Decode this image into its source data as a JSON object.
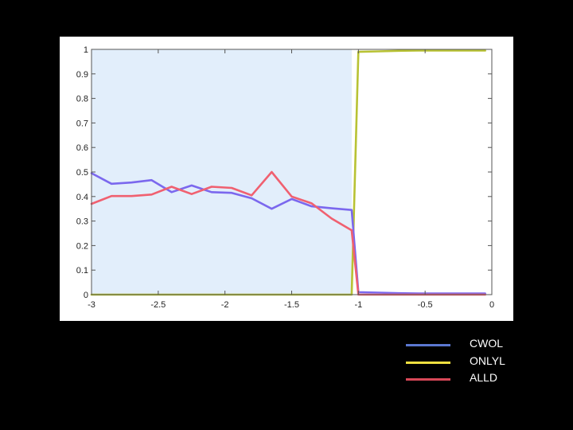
{
  "chart_data": {
    "type": "line",
    "title": "",
    "xlabel": "",
    "ylabel": "",
    "xlim": [
      -3,
      0
    ],
    "ylim": [
      0,
      1
    ],
    "x_ticks": [
      "-3",
      "-2.5",
      "-2",
      "-1.5",
      "-1",
      "-0.5",
      "0"
    ],
    "y_ticks": [
      "0",
      "0.1",
      "0.2",
      "0.3",
      "0.4",
      "0.5",
      "0.6",
      "0.7",
      "0.8",
      "0.9",
      "1"
    ],
    "shaded_region": {
      "x": [
        -3,
        -1.05
      ],
      "y": [
        0,
        1
      ],
      "color": "#e2eefb"
    },
    "grid": false,
    "legend_position": "bottom-right, outside plot",
    "x": [
      -3.0,
      -2.85,
      -2.7,
      -2.55,
      -2.4,
      -2.25,
      -2.1,
      -1.95,
      -1.8,
      -1.65,
      -1.5,
      -1.35,
      -1.2,
      -1.05,
      -1.0,
      -0.85,
      -0.7,
      -0.55,
      -0.4,
      -0.25,
      -0.1,
      -0.05
    ],
    "series": [
      {
        "name": "CWOL",
        "color": "#7b68ee",
        "values": [
          0.495,
          0.452,
          0.457,
          0.467,
          0.418,
          0.445,
          0.418,
          0.415,
          0.393,
          0.35,
          0.39,
          0.36,
          0.352,
          0.345,
          0.01,
          0.008,
          0.006,
          0.005,
          0.005,
          0.005,
          0.005,
          0.005
        ]
      },
      {
        "name": "ONLYL",
        "color": "#b8c234",
        "values": [
          0.0,
          0.0,
          0.0,
          0.0,
          0.0,
          0.0,
          0.0,
          0.0,
          0.0,
          0.0,
          0.0,
          0.0,
          0.0,
          0.0,
          0.99,
          0.992,
          0.994,
          0.995,
          0.995,
          0.995,
          0.995,
          0.995
        ]
      },
      {
        "name": "ALLD",
        "color": "#f06070",
        "values": [
          0.37,
          0.402,
          0.402,
          0.408,
          0.44,
          0.41,
          0.44,
          0.435,
          0.405,
          0.5,
          0.4,
          0.372,
          0.31,
          0.262,
          0.0,
          0.0,
          0.0,
          0.0,
          0.0,
          0.0,
          0.0,
          0.0
        ]
      }
    ]
  },
  "legend": {
    "items": [
      {
        "label": "CWOL",
        "color": "#5b78d0"
      },
      {
        "label": "ONLYL",
        "color": "#f0e040"
      },
      {
        "label": "ALLD",
        "color": "#d84858"
      }
    ]
  }
}
